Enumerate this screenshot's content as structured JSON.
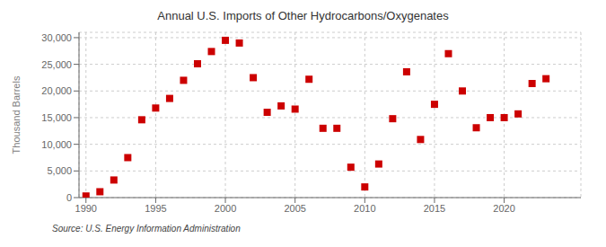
{
  "chart_data": {
    "type": "scatter",
    "title": "Annual U.S. Imports of Other Hydrocarbons/Oxygenates",
    "y_label": "Thousand Barrels",
    "annotations": [
      "Source: U.S. Energy Information Administration"
    ],
    "x": [
      1990,
      1991,
      1992,
      1993,
      1994,
      1995,
      1996,
      1997,
      1998,
      1999,
      2000,
      2001,
      2002,
      2003,
      2004,
      2005,
      2006,
      2007,
      2008,
      2009,
      2010,
      2011,
      2012,
      2013,
      2014,
      2015,
      2016,
      2017,
      2018,
      2019,
      2020,
      2021,
      2022,
      2023
    ],
    "values": [
      300,
      1100,
      3300,
      7500,
      14600,
      16800,
      18600,
      22000,
      25100,
      27400,
      29500,
      29000,
      22500,
      16000,
      17200,
      16600,
      22200,
      13000,
      13000,
      5700,
      2000,
      6300,
      14800,
      23600,
      10900,
      17500,
      27000,
      20000,
      13100,
      15000,
      15000,
      15700,
      21400,
      22300
    ],
    "color": "#cc0000",
    "marker": "square",
    "xlim": [
      1989.5,
      2025.5
    ],
    "ylim": [
      0,
      31000
    ],
    "xticks": [
      1990,
      1995,
      2000,
      2005,
      2010,
      2015,
      2020
    ],
    "yticks": [
      0,
      {
        "value": 5000,
        "label": "5,000"
      },
      {
        "value": 10000,
        "label": "10,000"
      },
      {
        "value": 15000,
        "label": "15,000"
      },
      {
        "value": 20000,
        "label": "20,000"
      },
      {
        "value": 25000,
        "label": "25,000"
      },
      {
        "value": 30000,
        "label": "30,000"
      }
    ],
    "grid": true
  }
}
